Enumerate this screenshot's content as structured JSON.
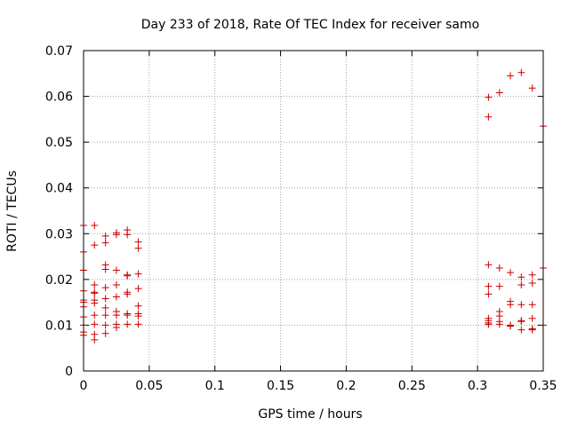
{
  "chart_data": {
    "type": "scatter",
    "title": "Day 233 of 2018, Rate Of TEC Index for receiver samo",
    "xlabel": "GPS time / hours",
    "ylabel": "ROTI / TECUs",
    "xlim": [
      0,
      0.35
    ],
    "ylim": [
      0,
      0.07
    ],
    "xticks": [
      "0",
      "0.05",
      "0.1",
      "0.15",
      "0.2",
      "0.25",
      "0.3",
      "0.35"
    ],
    "yticks": [
      "0",
      "0.01",
      "0.02",
      "0.03",
      "0.04",
      "0.05",
      "0.06",
      "0.07"
    ],
    "grid": true,
    "marker": "+",
    "series": [
      {
        "color": "#cc0000",
        "points": [
          [
            0,
            0.0318
          ],
          [
            0,
            0.026
          ],
          [
            0,
            0.022
          ],
          [
            0,
            0.0175
          ],
          [
            0,
            0.0155
          ],
          [
            0,
            0.015
          ],
          [
            0,
            0.014
          ],
          [
            0,
            0.0118
          ],
          [
            0,
            0.01
          ],
          [
            0,
            0.0085
          ],
          [
            0,
            0.0078
          ],
          [
            0.0083,
            0.0318
          ],
          [
            0.0083,
            0.0275
          ],
          [
            0.0083,
            0.0188
          ],
          [
            0.0083,
            0.0172
          ],
          [
            0.0083,
            0.017
          ],
          [
            0.0083,
            0.0155
          ],
          [
            0.0083,
            0.0148
          ],
          [
            0.0083,
            0.0122
          ],
          [
            0.0083,
            0.0102
          ],
          [
            0.0083,
            0.008
          ],
          [
            0.0083,
            0.0068
          ],
          [
            0.0167,
            0.0295
          ],
          [
            0.0167,
            0.028
          ],
          [
            0.0167,
            0.0232
          ],
          [
            0.0167,
            0.0222
          ],
          [
            0.0167,
            0.0182
          ],
          [
            0.0167,
            0.0158
          ],
          [
            0.0167,
            0.0138
          ],
          [
            0.0167,
            0.0122
          ],
          [
            0.0167,
            0.01
          ],
          [
            0.0167,
            0.0082
          ],
          [
            0.025,
            0.0302
          ],
          [
            0.025,
            0.0298
          ],
          [
            0.025,
            0.022
          ],
          [
            0.025,
            0.0188
          ],
          [
            0.025,
            0.0162
          ],
          [
            0.025,
            0.013
          ],
          [
            0.025,
            0.0122
          ],
          [
            0.025,
            0.0102
          ],
          [
            0.025,
            0.0095
          ],
          [
            0.0333,
            0.0308
          ],
          [
            0.0333,
            0.0298
          ],
          [
            0.0333,
            0.021
          ],
          [
            0.0333,
            0.0208
          ],
          [
            0.0333,
            0.0172
          ],
          [
            0.0333,
            0.0168
          ],
          [
            0.0333,
            0.0125
          ],
          [
            0.0333,
            0.0122
          ],
          [
            0.0333,
            0.0102
          ],
          [
            0.0417,
            0.0282
          ],
          [
            0.0417,
            0.0268
          ],
          [
            0.0417,
            0.0212
          ],
          [
            0.0417,
            0.018
          ],
          [
            0.0417,
            0.0142
          ],
          [
            0.0417,
            0.0125
          ],
          [
            0.0417,
            0.012
          ],
          [
            0.0417,
            0.0102
          ],
          [
            0.3083,
            0.0598
          ],
          [
            0.3083,
            0.0555
          ],
          [
            0.3083,
            0.0232
          ],
          [
            0.3083,
            0.0185
          ],
          [
            0.3083,
            0.0168
          ],
          [
            0.3083,
            0.0115
          ],
          [
            0.3083,
            0.011
          ],
          [
            0.3083,
            0.0105
          ],
          [
            0.3083,
            0.0102
          ],
          [
            0.3167,
            0.0608
          ],
          [
            0.3167,
            0.0225
          ],
          [
            0.3167,
            0.0185
          ],
          [
            0.3167,
            0.013
          ],
          [
            0.3167,
            0.012
          ],
          [
            0.3167,
            0.0108
          ],
          [
            0.3167,
            0.0102
          ],
          [
            0.325,
            0.0645
          ],
          [
            0.325,
            0.0215
          ],
          [
            0.325,
            0.0152
          ],
          [
            0.325,
            0.0145
          ],
          [
            0.325,
            0.01
          ],
          [
            0.325,
            0.0098
          ],
          [
            0.3333,
            0.0652
          ],
          [
            0.3333,
            0.0205
          ],
          [
            0.3333,
            0.0188
          ],
          [
            0.3333,
            0.0145
          ],
          [
            0.3333,
            0.011
          ],
          [
            0.3333,
            0.0108
          ],
          [
            0.3333,
            0.009
          ],
          [
            0.3417,
            0.0618
          ],
          [
            0.3417,
            0.021
          ],
          [
            0.3417,
            0.0192
          ],
          [
            0.3417,
            0.0145
          ],
          [
            0.3417,
            0.0115
          ],
          [
            0.3417,
            0.0092
          ],
          [
            0.3417,
            0.009
          ],
          [
            0.35,
            0.0535
          ],
          [
            0.35,
            0.0225
          ],
          [
            0.35,
            0.01
          ]
        ]
      }
    ]
  }
}
